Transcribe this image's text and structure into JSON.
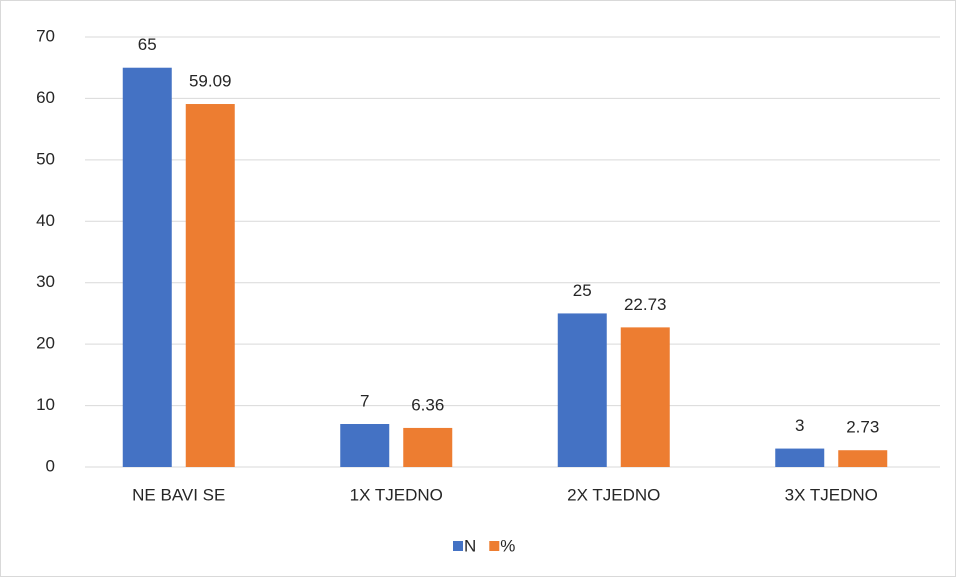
{
  "chart_data": {
    "type": "bar",
    "categories": [
      "NE BAVI SE",
      "1X TJEDNO",
      "2X TJEDNO",
      "3X TJEDNO"
    ],
    "series": [
      {
        "name": "N",
        "color": "#4472c4",
        "values": [
          65,
          7,
          25,
          3
        ]
      },
      {
        "name": "%",
        "color": "#ed7d31",
        "values": [
          59.09,
          6.36,
          22.73,
          2.73
        ]
      }
    ],
    "ylim": [
      0,
      70
    ],
    "yticks": [
      0,
      10,
      20,
      30,
      40,
      50,
      60,
      70
    ],
    "grid": true,
    "legend": "bottom"
  }
}
